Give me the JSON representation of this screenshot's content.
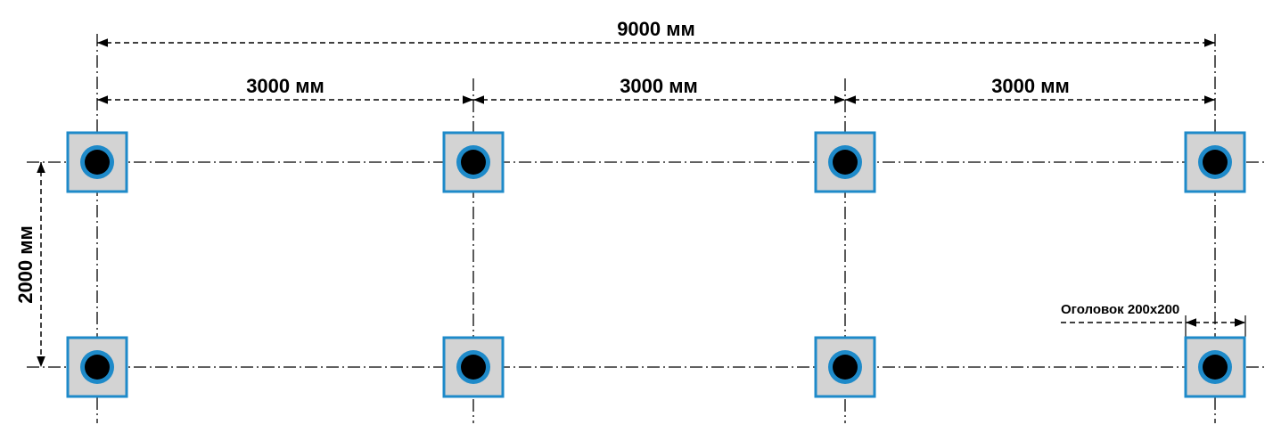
{
  "dimensions": {
    "overall_width": "9000 мм",
    "bay_1": "3000 мм",
    "bay_2": "3000 мм",
    "bay_3": "3000 мм",
    "depth": "2000 мм",
    "cap_size": "Оголовок 200х200"
  },
  "colors": {
    "cap_fill": "#d3d3d3",
    "cap_border": "#1e8ac9",
    "pile_ring": "#1e8ac9",
    "pile_core": "#000000",
    "lines": "#000000"
  },
  "piles": {
    "rows": 2,
    "columns": 4
  }
}
